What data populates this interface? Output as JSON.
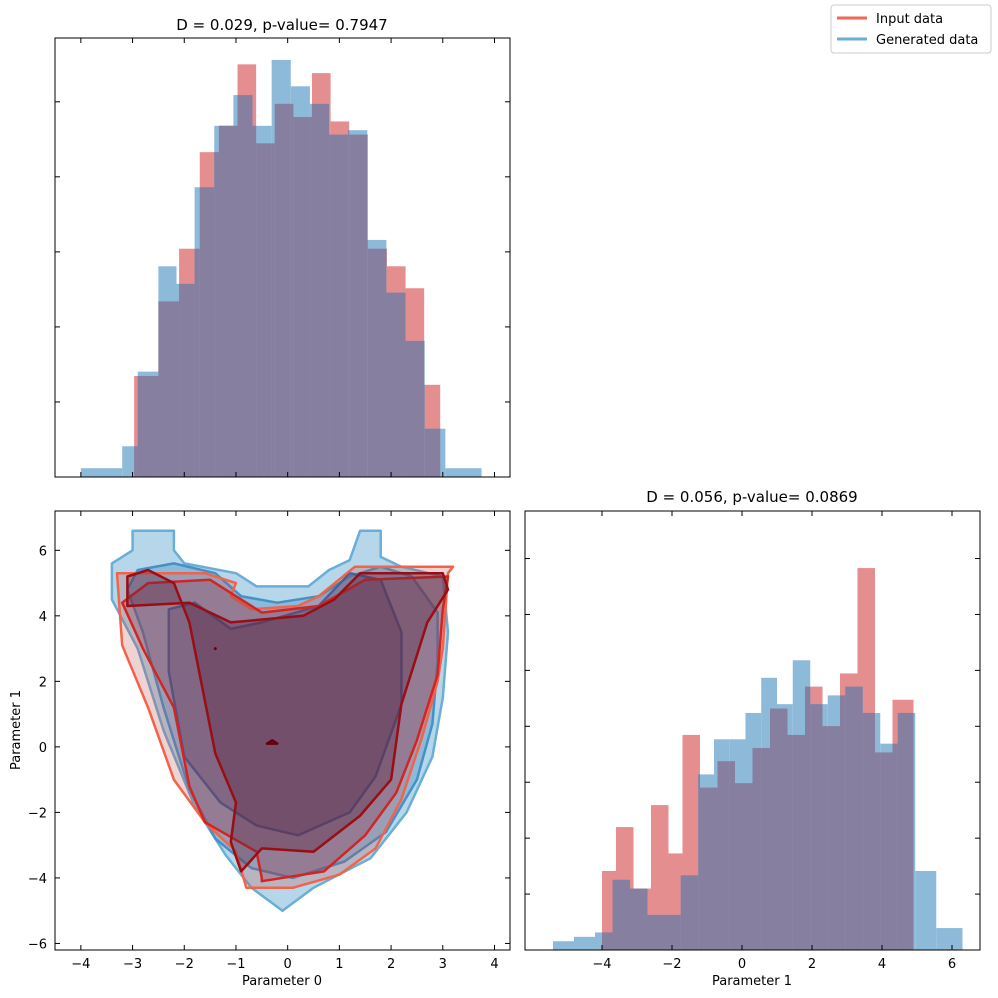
{
  "legend": {
    "entries": [
      {
        "label": "Input data",
        "color": "#ee6a57"
      },
      {
        "label": "Generated data",
        "color": "#6aaed6"
      }
    ]
  },
  "colors": {
    "input_hist": "#e07a7d",
    "generated_hist": "#7aaed3",
    "overlap": "#877f9f",
    "input_contours": [
      "#f4624a",
      "#d42422",
      "#9b0d14",
      "#67000d"
    ],
    "generated_contours": [
      "#6aaed6",
      "#4391c6",
      "#1e68ad",
      "#08306b"
    ]
  },
  "chart_data": [
    {
      "type": "bar",
      "panel": "hist-parameter-0",
      "title": "D = 0.029, p-value= 0.7947",
      "xlim": [
        -4.5,
        4.3
      ],
      "ylim": [
        0,
        1.0
      ],
      "show_y_tick_labels": false,
      "show_x_tick_labels": false,
      "series": [
        {
          "name": "Input data",
          "bin_edges": [
            -2.97,
            -2.5,
            -2.1,
            -1.7,
            -1.33,
            -0.97,
            -0.61,
            -0.25,
            0.11,
            0.47,
            0.83,
            1.19,
            1.55,
            1.92,
            2.28,
            2.64,
            2.95
          ],
          "values": [
            0.23,
            0.4,
            0.52,
            0.74,
            0.8,
            0.94,
            0.76,
            0.85,
            0.82,
            0.92,
            0.81,
            0.78,
            0.52,
            0.48,
            0.43,
            0.21
          ]
        },
        {
          "name": "Generated data",
          "bin_edges": [
            -4.0,
            -3.2,
            -2.9,
            -2.5,
            -2.15,
            -1.8,
            -1.42,
            -1.05,
            -0.68,
            -0.31,
            0.06,
            0.43,
            0.8,
            1.17,
            1.54,
            1.91,
            2.28,
            2.65,
            3.05,
            3.75
          ],
          "values": [
            0.02,
            0.07,
            0.24,
            0.48,
            0.44,
            0.66,
            0.8,
            0.87,
            0.8,
            0.95,
            0.89,
            0.85,
            0.78,
            0.79,
            0.54,
            0.42,
            0.31,
            0.11,
            0.02
          ]
        }
      ]
    },
    {
      "type": "heatmap",
      "panel": "contour-parameter-0-vs-1",
      "title": "",
      "xlabel": "Parameter 0",
      "ylabel": "Parameter 1",
      "xlim": [
        -4.5,
        4.3
      ],
      "ylim": [
        -6.2,
        7.2
      ],
      "xticks": [
        -4,
        -3,
        -2,
        -1,
        0,
        1,
        2,
        3,
        4
      ],
      "yticks": [
        -6,
        -4,
        -2,
        0,
        2,
        4,
        6
      ],
      "series": [
        {
          "name": "Generated data",
          "contours": [
            [
              [
                -0.1,
                -5.0
              ],
              [
                0.5,
                -4.3
              ],
              [
                1.6,
                -3.4
              ],
              [
                2.3,
                -2.0
              ],
              [
                2.8,
                -0.3
              ],
              [
                3.0,
                1.5
              ],
              [
                3.1,
                3.5
              ],
              [
                3.0,
                5.2
              ],
              [
                2.2,
                5.5
              ],
              [
                1.8,
                5.8
              ],
              [
                1.8,
                6.6
              ],
              [
                1.4,
                6.6
              ],
              [
                1.2,
                5.7
              ],
              [
                0.8,
                5.4
              ],
              [
                0.4,
                4.9
              ],
              [
                -0.6,
                4.9
              ],
              [
                -1.0,
                5.3
              ],
              [
                -2.0,
                5.6
              ],
              [
                -2.2,
                6.0
              ],
              [
                -2.2,
                6.6
              ],
              [
                -3.0,
                6.6
              ],
              [
                -3.0,
                6.0
              ],
              [
                -3.4,
                5.6
              ],
              [
                -3.4,
                4.5
              ],
              [
                -2.9,
                3.0
              ],
              [
                -2.4,
                0.5
              ],
              [
                -1.8,
                -1.8
              ],
              [
                -1.2,
                -3.3
              ],
              [
                -0.7,
                -4.3
              ]
            ],
            [
              [
                0.1,
                -4.0
              ],
              [
                1.1,
                -3.5
              ],
              [
                1.9,
                -2.6
              ],
              [
                2.5,
                -1.0
              ],
              [
                2.8,
                0.7
              ],
              [
                2.9,
                2.6
              ],
              [
                2.9,
                4.1
              ],
              [
                2.4,
                5.2
              ],
              [
                1.8,
                5.5
              ],
              [
                1.2,
                5.2
              ],
              [
                0.6,
                4.6
              ],
              [
                -0.2,
                4.4
              ],
              [
                -0.9,
                4.6
              ],
              [
                -1.4,
                5.3
              ],
              [
                -2.2,
                5.6
              ],
              [
                -2.9,
                5.4
              ],
              [
                -3.1,
                4.8
              ],
              [
                -2.8,
                3.5
              ],
              [
                -2.4,
                1.2
              ],
              [
                -1.9,
                -1.3
              ],
              [
                -1.4,
                -2.8
              ],
              [
                -0.7,
                -3.7
              ]
            ],
            [
              [
                0.2,
                -2.7
              ],
              [
                1.2,
                -2.0
              ],
              [
                1.7,
                -0.9
              ],
              [
                2.2,
                1.3
              ],
              [
                2.2,
                3.5
              ],
              [
                1.8,
                5.1
              ],
              [
                1.2,
                5.3
              ],
              [
                0.6,
                4.3
              ],
              [
                -0.5,
                3.8
              ],
              [
                -1.1,
                3.6
              ],
              [
                -1.8,
                4.4
              ],
              [
                -2.3,
                4.2
              ],
              [
                -2.3,
                2.3
              ],
              [
                -2.0,
                -0.3
              ],
              [
                -1.3,
                -1.7
              ],
              [
                -0.6,
                -2.4
              ]
            ]
          ]
        },
        {
          "name": "Input data",
          "contours": [
            [
              [
                0.1,
                -4.3
              ],
              [
                1.0,
                -3.9
              ],
              [
                1.7,
                -3.1
              ],
              [
                2.2,
                -1.6
              ],
              [
                2.6,
                0.3
              ],
              [
                2.9,
                2.0
              ],
              [
                3.0,
                3.0
              ],
              [
                3.1,
                5.3
              ],
              [
                3.2,
                5.5
              ],
              [
                1.3,
                5.5
              ],
              [
                0.6,
                4.6
              ],
              [
                0.2,
                4.3
              ],
              [
                -0.7,
                4.2
              ],
              [
                -1.1,
                4.6
              ],
              [
                -1.0,
                5.0
              ],
              [
                -1.6,
                5.3
              ],
              [
                -3.3,
                5.3
              ],
              [
                -3.2,
                3.1
              ],
              [
                -2.7,
                1.2
              ],
              [
                -2.2,
                -1.0
              ],
              [
                -1.6,
                -2.3
              ],
              [
                -1.0,
                -3.2
              ],
              [
                -0.8,
                -4.3
              ]
            ],
            [
              [
                -0.5,
                -4.1
              ],
              [
                0.7,
                -3.8
              ],
              [
                1.5,
                -2.7
              ],
              [
                2.1,
                -1.4
              ],
              [
                2.5,
                0.2
              ],
              [
                2.9,
                2.2
              ],
              [
                3.0,
                4.2
              ],
              [
                3.1,
                5.2
              ],
              [
                1.5,
                5.1
              ],
              [
                0.6,
                4.3
              ],
              [
                -0.5,
                4.1
              ],
              [
                -1.5,
                5.1
              ],
              [
                -2.7,
                5.0
              ],
              [
                -3.2,
                4.4
              ],
              [
                -2.8,
                3.0
              ],
              [
                -2.2,
                1.2
              ],
              [
                -1.9,
                -1.2
              ],
              [
                -1.6,
                -2.3
              ],
              [
                -0.6,
                -3.2
              ],
              [
                -0.5,
                -4.0
              ]
            ],
            [
              [
                -0.9,
                -3.8
              ],
              [
                -0.5,
                -3.1
              ],
              [
                0.5,
                -3.2
              ],
              [
                1.4,
                -2.1
              ],
              [
                2.0,
                -1.0
              ],
              [
                2.2,
                1.3
              ],
              [
                2.7,
                3.8
              ],
              [
                3.1,
                4.8
              ],
              [
                3.0,
                5.3
              ],
              [
                1.4,
                5.3
              ],
              [
                0.9,
                4.5
              ],
              [
                0.3,
                4.0
              ],
              [
                -1.1,
                3.8
              ],
              [
                -1.9,
                4.4
              ],
              [
                -3.1,
                4.3
              ],
              [
                -3.1,
                4.9
              ],
              [
                -3.1,
                5.2
              ],
              [
                -2.7,
                5.4
              ],
              [
                -2.2,
                5.0
              ],
              [
                -1.9,
                3.8
              ],
              [
                -1.4,
                -0.2
              ],
              [
                -1.0,
                -1.7
              ],
              [
                -1.1,
                -2.9
              ]
            ],
            [
              [
                -0.3,
                0.2
              ],
              [
                -0.2,
                0.1
              ],
              [
                -0.4,
                0.1
              ],
              [
                -0.3,
                0.2
              ]
            ]
          ]
        }
      ]
    },
    {
      "type": "bar",
      "panel": "hist-parameter-1",
      "title": "D = 0.056, p-value= 0.0869",
      "xlabel": "Parameter 1",
      "xlim": [
        -6.2,
        6.8
      ],
      "ylim": [
        0,
        1.0
      ],
      "xticks": [
        -4,
        -2,
        0,
        2,
        4,
        6
      ],
      "show_y_tick_labels": false,
      "series": [
        {
          "name": "Input data",
          "bin_edges": [
            -4.0,
            -3.6,
            -3.1,
            -2.6,
            -2.1,
            -1.7,
            -1.2,
            -0.7,
            -0.2,
            0.3,
            0.8,
            1.3,
            1.8,
            2.3,
            2.8,
            3.3,
            3.8,
            4.3,
            4.9
          ],
          "values": [
            0.18,
            0.28,
            0.14,
            0.33,
            0.22,
            0.49,
            0.37,
            0.43,
            0.38,
            0.46,
            0.55,
            0.49,
            0.6,
            0.51,
            0.63,
            0.87,
            0.45,
            0.57
          ]
        },
        {
          "name": "Generated data",
          "bin_edges": [
            -5.4,
            -4.8,
            -4.2,
            -3.7,
            -3.2,
            -2.7,
            -2.2,
            -1.75,
            -1.25,
            -0.8,
            -0.35,
            0.1,
            0.55,
            1.0,
            1.45,
            1.95,
            2.45,
            2.95,
            3.45,
            3.95,
            4.45,
            4.95,
            5.55,
            6.3
          ],
          "values": [
            0.02,
            0.03,
            0.04,
            0.16,
            0.14,
            0.08,
            0.08,
            0.17,
            0.4,
            0.48,
            0.48,
            0.54,
            0.62,
            0.56,
            0.66,
            0.56,
            0.58,
            0.6,
            0.54,
            0.47,
            0.54,
            0.18,
            0.05
          ]
        }
      ]
    }
  ]
}
